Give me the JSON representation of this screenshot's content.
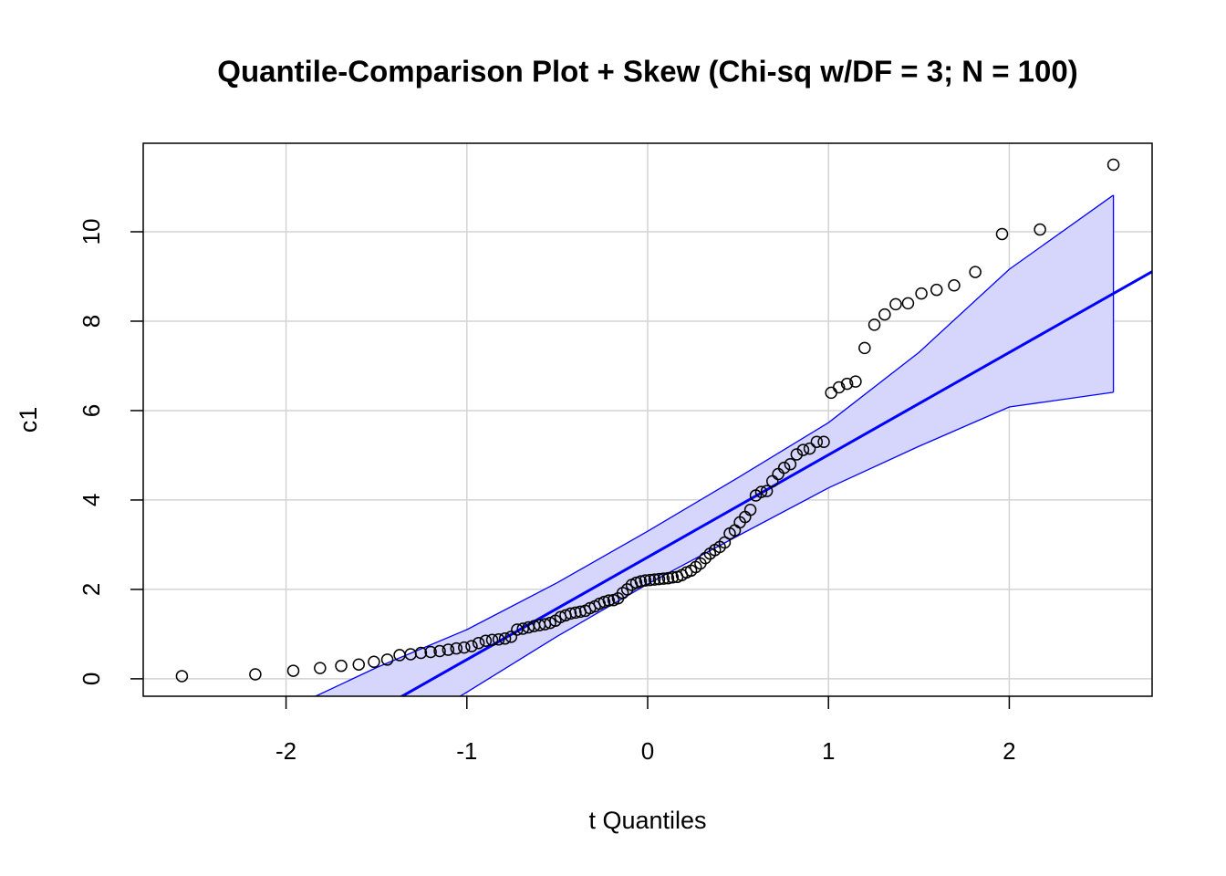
{
  "chart_data": {
    "type": "qqplot",
    "title": "Quantile-Comparison Plot + Skew (Chi-sq w/DF = 3; N = 100)",
    "x_label": "t Quantiles",
    "y_label": "c1",
    "xlim": [
      -2.79,
      2.79
    ],
    "ylim": [
      -0.39,
      11.98
    ],
    "xticks": [
      -2,
      -1,
      0,
      1,
      2
    ],
    "yticks": [
      0,
      2,
      4,
      6,
      8,
      10
    ],
    "grid": true,
    "point_color": "#000000",
    "line_color": "#0000ff",
    "band_color": "#d6d6fc",
    "x": [
      -2.576,
      -2.17,
      -1.96,
      -1.812,
      -1.695,
      -1.598,
      -1.514,
      -1.44,
      -1.372,
      -1.311,
      -1.254,
      -1.2,
      -1.15,
      -1.103,
      -1.058,
      -1.015,
      -0.974,
      -0.935,
      -0.896,
      -0.86,
      -0.824,
      -0.789,
      -0.755,
      -0.722,
      -0.69,
      -0.659,
      -0.628,
      -0.598,
      -0.568,
      -0.539,
      -0.51,
      -0.482,
      -0.454,
      -0.426,
      -0.399,
      -0.372,
      -0.345,
      -0.319,
      -0.292,
      -0.266,
      -0.24,
      -0.215,
      -0.189,
      -0.164,
      -0.138,
      -0.113,
      -0.088,
      -0.063,
      -0.038,
      -0.013,
      0.013,
      0.038,
      0.063,
      0.088,
      0.113,
      0.138,
      0.164,
      0.189,
      0.215,
      0.24,
      0.266,
      0.292,
      0.319,
      0.345,
      0.372,
      0.399,
      0.426,
      0.454,
      0.482,
      0.51,
      0.539,
      0.568,
      0.598,
      0.628,
      0.659,
      0.69,
      0.722,
      0.755,
      0.789,
      0.824,
      0.86,
      0.896,
      0.935,
      0.974,
      1.015,
      1.058,
      1.103,
      1.15,
      1.2,
      1.254,
      1.311,
      1.372,
      1.44,
      1.514,
      1.598,
      1.695,
      1.812,
      1.96,
      2.17,
      2.576
    ],
    "values": [
      0.06,
      0.1,
      0.18,
      0.24,
      0.29,
      0.32,
      0.38,
      0.43,
      0.53,
      0.55,
      0.58,
      0.6,
      0.62,
      0.65,
      0.68,
      0.7,
      0.73,
      0.8,
      0.85,
      0.87,
      0.88,
      0.9,
      0.94,
      1.1,
      1.12,
      1.15,
      1.18,
      1.2,
      1.22,
      1.25,
      1.3,
      1.38,
      1.42,
      1.46,
      1.48,
      1.5,
      1.52,
      1.58,
      1.62,
      1.68,
      1.72,
      1.75,
      1.76,
      1.8,
      1.92,
      2.0,
      2.1,
      2.15,
      2.18,
      2.2,
      2.21,
      2.22,
      2.23,
      2.24,
      2.25,
      2.27,
      2.28,
      2.32,
      2.38,
      2.42,
      2.5,
      2.58,
      2.7,
      2.8,
      2.88,
      2.95,
      3.05,
      3.25,
      3.32,
      3.5,
      3.62,
      3.78,
      4.1,
      4.18,
      4.2,
      4.42,
      4.58,
      4.72,
      4.8,
      5.02,
      5.12,
      5.15,
      5.3,
      5.3,
      6.4,
      6.52,
      6.6,
      6.65,
      7.4,
      7.92,
      8.15,
      8.38,
      8.4,
      8.62,
      8.7,
      8.8,
      9.1,
      9.95,
      10.05,
      11.5
    ],
    "fit_line": {
      "intercept": 2.72,
      "slope": 2.29
    },
    "envelope": {
      "x": [
        -2.576,
        -2,
        -1.5,
        -1,
        -0.5,
        0,
        0.5,
        1,
        1.5,
        2,
        2.576
      ],
      "upper": [
        -1.8,
        -0.7,
        0.25,
        1.1,
        2.15,
        3.3,
        4.5,
        5.73,
        7.3,
        9.16,
        10.82
      ],
      "lower": [
        -4.3,
        -3.0,
        -1.5,
        -0.3,
        0.95,
        2.12,
        3.2,
        4.27,
        5.2,
        6.08,
        6.41
      ]
    }
  }
}
